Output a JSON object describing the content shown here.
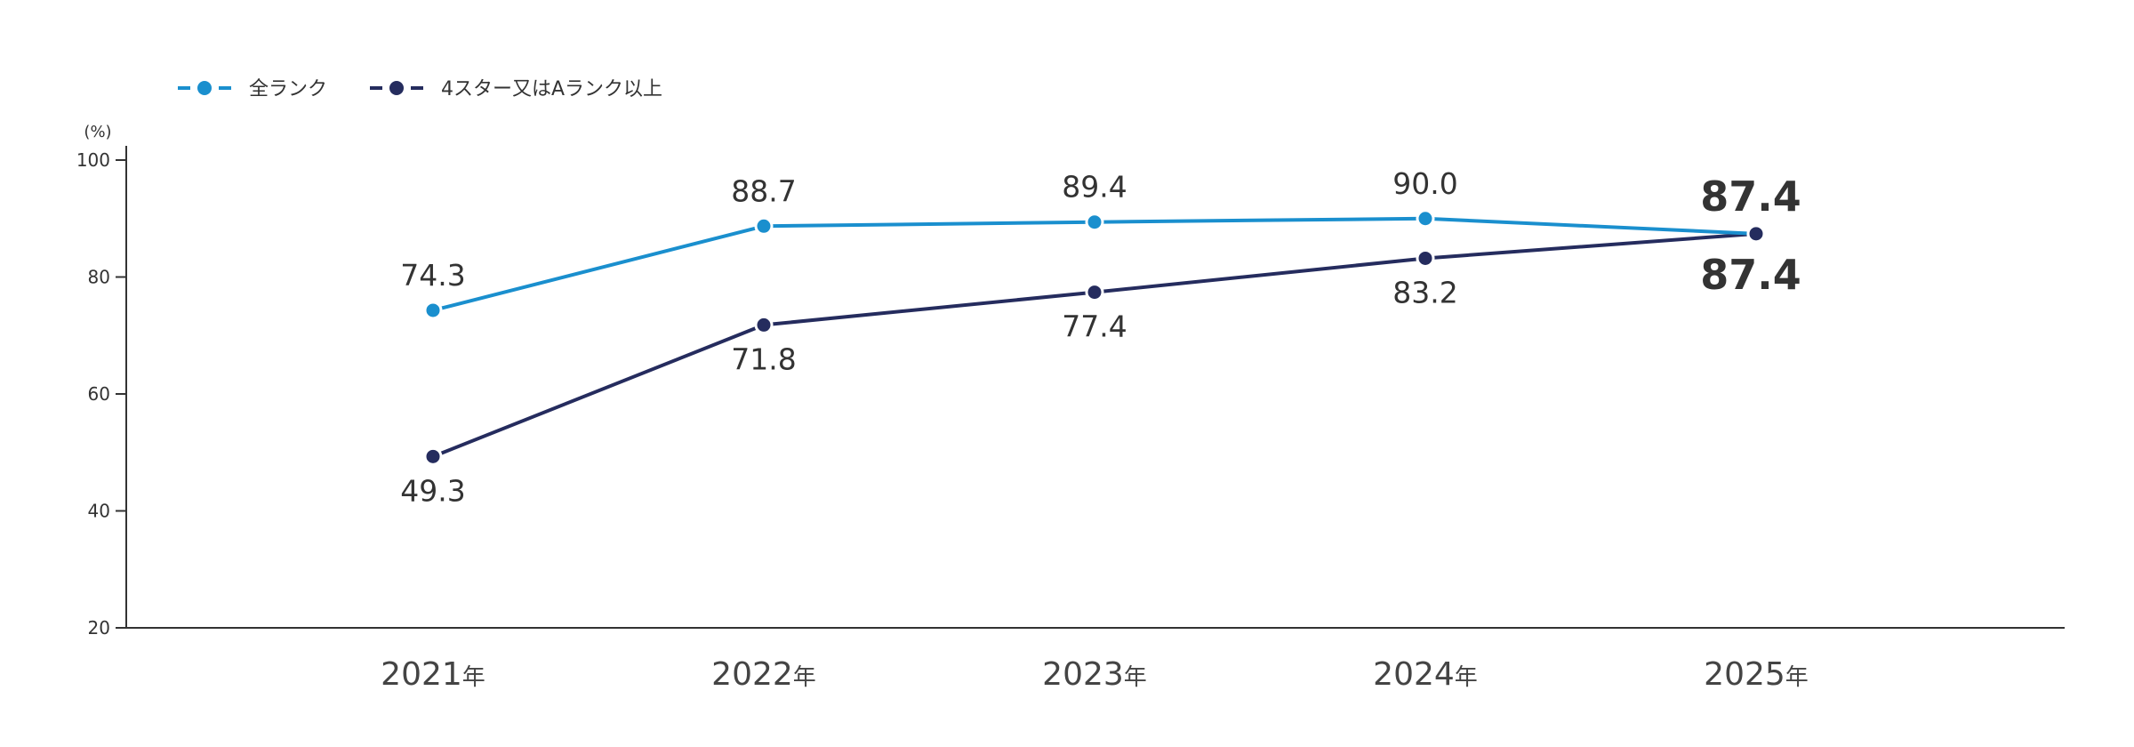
{
  "chart_data": {
    "type": "line",
    "y_unit_label": "(%)",
    "categories": [
      "2021",
      "2022",
      "2023",
      "2024",
      "2025"
    ],
    "category_suffix": "年",
    "ylim": [
      20,
      100
    ],
    "yticks": [
      20,
      40,
      60,
      80,
      100
    ],
    "legend_position": "top-left",
    "grid": false,
    "series": [
      {
        "name": "全ランク",
        "color": "#1a8fce",
        "values": [
          74.3,
          88.7,
          89.4,
          90.0,
          87.4
        ],
        "labels": [
          "74.3",
          "88.7",
          "89.4",
          "90.0",
          "87.4"
        ]
      },
      {
        "name": "4スター又はAランク以上",
        "color": "#252c5e",
        "values": [
          49.3,
          71.8,
          77.4,
          83.2,
          87.4
        ],
        "labels": [
          "49.3",
          "71.8",
          "77.4",
          "83.2",
          "87.4"
        ]
      }
    ]
  }
}
